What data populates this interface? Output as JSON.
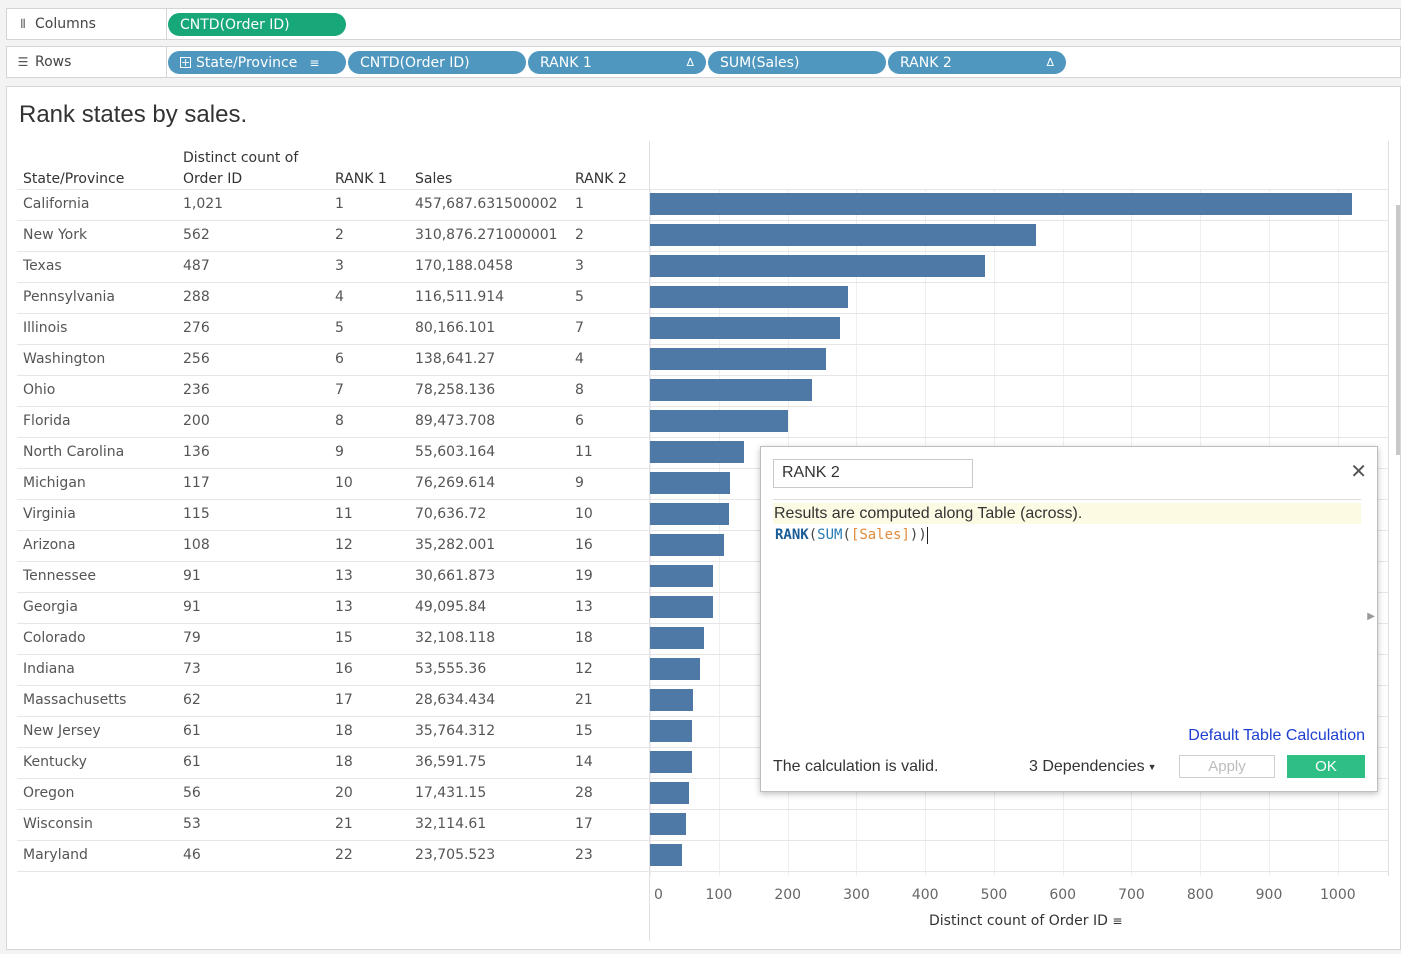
{
  "shelves": {
    "columns": {
      "label": "Columns",
      "icon": "columns-icon",
      "pills": [
        {
          "label": "CNTD(Order ID)",
          "color": "#17a778"
        }
      ]
    },
    "rows": {
      "label": "Rows",
      "icon": "rows-icon",
      "pills": [
        {
          "label": "State/Province",
          "color": "#4f97bf"
        },
        {
          "label": "CNTD(Order ID)",
          "color": "#4f97bf"
        },
        {
          "label": "RANK 1",
          "color": "#4f97bf",
          "delta": "Δ"
        },
        {
          "label": "SUM(Sales)",
          "color": "#4f97bf"
        },
        {
          "label": "RANK 2",
          "color": "#4f97bf",
          "delta": "Δ"
        }
      ]
    }
  },
  "sheet": {
    "title": "Rank states by sales.",
    "headers": {
      "state": "State/Province",
      "count_line1": "Distinct count of",
      "count_line2": "Order ID",
      "rank1": "RANK 1",
      "sales": "Sales",
      "rank2": "RANK 2"
    },
    "rows": [
      {
        "state": "California",
        "count": "1,021",
        "rank1": "1",
        "sales": "457,687.631500002",
        "rank2": "1"
      },
      {
        "state": "New York",
        "count": "562",
        "rank1": "2",
        "sales": "310,876.271000001",
        "rank2": "2"
      },
      {
        "state": "Texas",
        "count": "487",
        "rank1": "3",
        "sales": "170,188.0458",
        "rank2": "3"
      },
      {
        "state": "Pennsylvania",
        "count": "288",
        "rank1": "4",
        "sales": "116,511.914",
        "rank2": "5"
      },
      {
        "state": "Illinois",
        "count": "276",
        "rank1": "5",
        "sales": "80,166.101",
        "rank2": "7"
      },
      {
        "state": "Washington",
        "count": "256",
        "rank1": "6",
        "sales": "138,641.27",
        "rank2": "4"
      },
      {
        "state": "Ohio",
        "count": "236",
        "rank1": "7",
        "sales": "78,258.136",
        "rank2": "8"
      },
      {
        "state": "Florida",
        "count": "200",
        "rank1": "8",
        "sales": "89,473.708",
        "rank2": "6"
      },
      {
        "state": "North Carolina",
        "count": "136",
        "rank1": "9",
        "sales": "55,603.164",
        "rank2": "11"
      },
      {
        "state": "Michigan",
        "count": "117",
        "rank1": "10",
        "sales": "76,269.614",
        "rank2": "9"
      },
      {
        "state": "Virginia",
        "count": "115",
        "rank1": "11",
        "sales": "70,636.72",
        "rank2": "10"
      },
      {
        "state": "Arizona",
        "count": "108",
        "rank1": "12",
        "sales": "35,282.001",
        "rank2": "16"
      },
      {
        "state": "Tennessee",
        "count": "91",
        "rank1": "13",
        "sales": "30,661.873",
        "rank2": "19"
      },
      {
        "state": "Georgia",
        "count": "91",
        "rank1": "13",
        "sales": "49,095.84",
        "rank2": "13"
      },
      {
        "state": "Colorado",
        "count": "79",
        "rank1": "15",
        "sales": "32,108.118",
        "rank2": "18"
      },
      {
        "state": "Indiana",
        "count": "73",
        "rank1": "16",
        "sales": "53,555.36",
        "rank2": "12"
      },
      {
        "state": "Massachusetts",
        "count": "62",
        "rank1": "17",
        "sales": "28,634.434",
        "rank2": "21"
      },
      {
        "state": "New Jersey",
        "count": "61",
        "rank1": "18",
        "sales": "35,764.312",
        "rank2": "15"
      },
      {
        "state": "Kentucky",
        "count": "61",
        "rank1": "18",
        "sales": "36,591.75",
        "rank2": "14"
      },
      {
        "state": "Oregon",
        "count": "56",
        "rank1": "20",
        "sales": "17,431.15",
        "rank2": "28"
      },
      {
        "state": "Wisconsin",
        "count": "53",
        "rank1": "21",
        "sales": "32,114.61",
        "rank2": "17"
      },
      {
        "state": "Maryland",
        "count": "46",
        "rank1": "22",
        "sales": "23,705.523",
        "rank2": "23"
      }
    ]
  },
  "chart_data": {
    "type": "bar",
    "orientation": "horizontal",
    "categories": [
      "California",
      "New York",
      "Texas",
      "Pennsylvania",
      "Illinois",
      "Washington",
      "Ohio",
      "Florida",
      "North Carolina",
      "Michigan",
      "Virginia",
      "Arizona",
      "Tennessee",
      "Georgia",
      "Colorado",
      "Indiana",
      "Massachusetts",
      "New Jersey",
      "Kentucky",
      "Oregon",
      "Wisconsin",
      "Maryland"
    ],
    "values": [
      1021,
      562,
      487,
      288,
      276,
      256,
      236,
      200,
      136,
      117,
      115,
      108,
      91,
      91,
      79,
      73,
      62,
      61,
      61,
      56,
      53,
      46
    ],
    "xlabel": "Distinct count of Order ID",
    "ticks": [
      "0",
      "100",
      "200",
      "300",
      "400",
      "500",
      "600",
      "700",
      "800",
      "900",
      "1000"
    ],
    "xlim": [
      0,
      1070
    ],
    "bar_color": "#4e79a7",
    "grid": true
  },
  "dialog": {
    "name": "RANK 2",
    "info": "Results are computed along Table (across).",
    "formula": {
      "fn": "RANK",
      "inner_fn": "SUM",
      "field": "[Sales]"
    },
    "link": "Default Table Calculation",
    "status": "The calculation is valid.",
    "dependencies": "3 Dependencies",
    "apply": "Apply",
    "ok": "OK",
    "ok_color": "#2dbf84"
  }
}
